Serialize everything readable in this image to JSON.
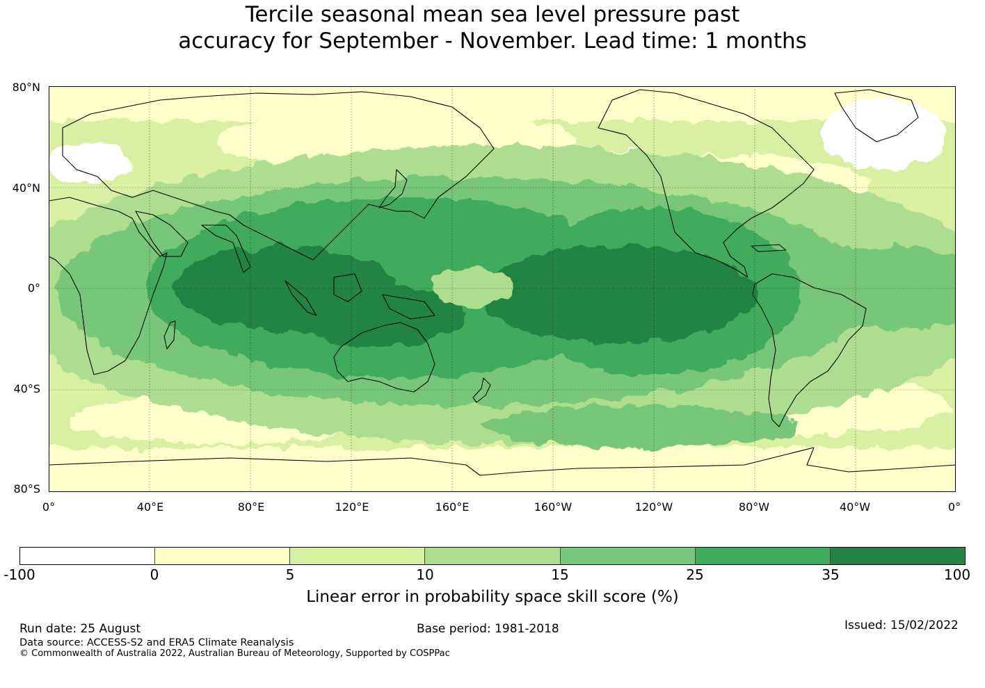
{
  "title": {
    "line1": "Tercile seasonal mean sea level pressure past",
    "line2": "accuracy for September - November. Lead time: 1 months"
  },
  "axes": {
    "lat_ticks": [
      "80°N",
      "40°N",
      "0°",
      "40°S",
      "80°S"
    ],
    "lon_ticks": [
      "0°",
      "40°E",
      "80°E",
      "120°E",
      "160°E",
      "160°W",
      "120°W",
      "80°W",
      "40°W",
      "0°"
    ]
  },
  "colorbar": {
    "label": "Linear error in probability space skill score (%)",
    "ticks": [
      "-100",
      "0",
      "5",
      "10",
      "15",
      "25",
      "35",
      "100"
    ],
    "colors": [
      "#ffffff",
      "#ffffcc",
      "#d9f0a3",
      "#addd8e",
      "#78c679",
      "#41ab5d",
      "#238443"
    ]
  },
  "footer": {
    "run_date": "Run date: 25 August",
    "base_period": "Base period: 1981-2018",
    "issued": "Issued: 15/02/2022",
    "data_source": "Data source: ACCESS-S2 and ERA5 Climate Reanalysis",
    "copyright": "© Commonwealth of Australia 2022, Australian Bureau of Meteorology, Supported by COSPPac"
  }
}
